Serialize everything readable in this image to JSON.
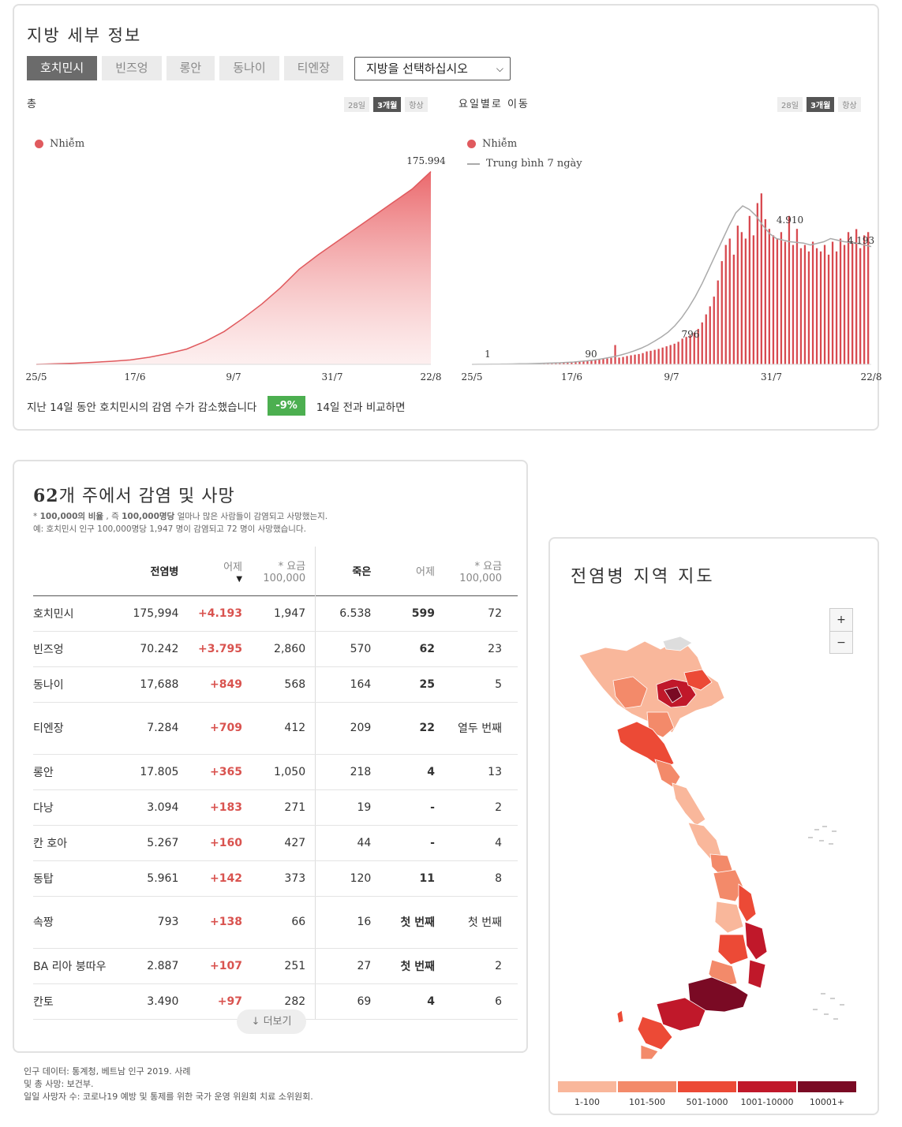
{
  "top": {
    "title": "지방 세부 정보",
    "tabs": [
      "호치민시",
      "빈즈엉",
      "롱안",
      "동나이",
      "티엔장"
    ],
    "select_label": "지방을 선택하십시오",
    "left_label": "총",
    "right_label": "요일별로 이동",
    "range_buttons": [
      "28일",
      "3개월",
      "항상"
    ],
    "legend_infected": "Nhiễm",
    "legend_avg": "Trung bình 7 ngày",
    "summary_text": "지난 14일 동안 호치민시의 감염 수가 감소했습니다",
    "summary_badge": "-9%",
    "summary_tail": "14일 전과 비교하면"
  },
  "chart_data": [
    {
      "type": "area",
      "title": "총",
      "series": [
        {
          "name": "Nhiễm",
          "values": [
            1,
            500,
            1000,
            1800,
            2800,
            4000,
            6500,
            9800,
            14000,
            21000,
            30000,
            42000,
            55000,
            70000,
            87000,
            100000,
            112000,
            124000,
            136000,
            148000,
            160000,
            175994
          ]
        }
      ],
      "x_ticks": [
        "25/5",
        "17/6",
        "9/7",
        "31/7",
        "22/8"
      ],
      "annotation": "175.994",
      "ylim": [
        0,
        180000
      ]
    },
    {
      "type": "bar",
      "title": "요일별로 이동",
      "series": [
        {
          "name": "Nhiễm",
          "values": [
            1,
            2,
            3,
            4,
            5,
            6,
            7,
            8,
            9,
            10,
            12,
            14,
            16,
            18,
            20,
            22,
            25,
            28,
            32,
            36,
            40,
            45,
            50,
            60,
            70,
            80,
            90,
            100,
            110,
            120,
            135,
            150,
            160,
            170,
            180,
            200,
            600,
            210,
            230,
            260,
            280,
            300,
            320,
            350,
            400,
            420,
            450,
            480,
            520,
            560,
            600,
            640,
            700,
            796,
            850,
            900,
            980,
            1100,
            1300,
            1550,
            1800,
            2100,
            2600,
            3200,
            3700,
            3900,
            3400,
            4300,
            4100,
            3900,
            4600,
            4000,
            5000,
            5300,
            4500,
            4200,
            4000,
            3900,
            4100,
            3800,
            4600,
            3700,
            4200,
            3600,
            3700,
            3500,
            3800,
            3600,
            3500,
            3700,
            3400,
            3800,
            3500,
            3900,
            3700,
            4100,
            3800,
            4193,
            3600,
            4000,
            4100
          ]
        },
        {
          "name": "Trung bình 7 ngày",
          "values": [
            1,
            2,
            3,
            5,
            7,
            10,
            13,
            16,
            20,
            25,
            30,
            36,
            42,
            50,
            60,
            72,
            90,
            110,
            135,
            165,
            200,
            240,
            290,
            350,
            420,
            500,
            600,
            720,
            850,
            1000,
            1200,
            1450,
            1750,
            2100,
            2500,
            2950,
            3400,
            3850,
            4300,
            4700,
            4910,
            4800,
            4600,
            4300,
            4050,
            3900,
            3850,
            3800,
            3780,
            3760,
            3700,
            3750,
            3800,
            3900,
            3850,
            3800,
            3780,
            3750,
            3700,
            3650
          ]
        }
      ],
      "x_ticks": [
        "25/5",
        "17/6",
        "9/7",
        "31/7",
        "22/8"
      ],
      "annotations": [
        "1",
        "90",
        "796",
        "4.910",
        "4.193"
      ]
    }
  ],
  "table": {
    "title_bold": "62",
    "title_rest": "개 주에서 감염 및 사망",
    "note1_prefix": "* ",
    "note1_b1": "100,000의 비율",
    "note1_mid": " , 즉 ",
    "note1_b2": "100,000명당",
    "note1_rest": " 얼마나 많은 사람들이 감염되고 사망했는지.",
    "note2": "예: 호치민시 인구 100,000명당 1,947 명이 감염되고 72 명이 사망했습니다.",
    "headers": {
      "cases": "전염병",
      "yesterday": "어제",
      "rate_top": "* 요금",
      "rate_bottom": "100,000",
      "deaths": "죽은",
      "d_yesterday": "어제",
      "d_rate_top": "* 요금",
      "d_rate_bottom": "100,000"
    },
    "rows": [
      {
        "name": "호치민시",
        "cases": "175,994",
        "yesterday": "+4.193",
        "rate": "1,947",
        "deaths": "6.538",
        "d_yesterday": "599",
        "d_rate": "72"
      },
      {
        "name": "빈즈엉",
        "cases": "70.242",
        "yesterday": "+3.795",
        "rate": "2,860",
        "deaths": "570",
        "d_yesterday": "62",
        "d_rate": "23"
      },
      {
        "name": "동나이",
        "cases": "17,688",
        "yesterday": "+849",
        "rate": "568",
        "deaths": "164",
        "d_yesterday": "25",
        "d_rate": "5"
      },
      {
        "name": "티엔장",
        "cases": "7.284",
        "yesterday": "+709",
        "rate": "412",
        "deaths": "209",
        "d_yesterday": "22",
        "d_rate": "열두 번째"
      },
      {
        "name": "롱안",
        "cases": "17.805",
        "yesterday": "+365",
        "rate": "1,050",
        "deaths": "218",
        "d_yesterday": "4",
        "d_rate": "13"
      },
      {
        "name": "다낭",
        "cases": "3.094",
        "yesterday": "+183",
        "rate": "271",
        "deaths": "19",
        "d_yesterday": "-",
        "d_rate": "2"
      },
      {
        "name": "칸 호아",
        "cases": "5.267",
        "yesterday": "+160",
        "rate": "427",
        "deaths": "44",
        "d_yesterday": "-",
        "d_rate": "4"
      },
      {
        "name": "동탑",
        "cases": "5.961",
        "yesterday": "+142",
        "rate": "373",
        "deaths": "120",
        "d_yesterday": "11",
        "d_rate": "8"
      },
      {
        "name": "속짱",
        "cases": "793",
        "yesterday": "+138",
        "rate": "66",
        "deaths": "16",
        "d_yesterday": "첫 번째",
        "d_rate": "첫 번째"
      },
      {
        "name": "BA 리아 붕따우",
        "cases": "2.887",
        "yesterday": "+107",
        "rate": "251",
        "deaths": "27",
        "d_yesterday": "첫 번째",
        "d_rate": "2"
      },
      {
        "name": "칸토",
        "cases": "3.490",
        "yesterday": "+97",
        "rate": "282",
        "deaths": "69",
        "d_yesterday": "4",
        "d_rate": "6"
      }
    ],
    "more_label": "더보기"
  },
  "map": {
    "title": "전염병 지역 지도",
    "zoom_in": "+",
    "zoom_out": "−",
    "legend": [
      {
        "label": "1-100",
        "color": "#f9b79b"
      },
      {
        "label": "101-500",
        "color": "#f38a6a"
      },
      {
        "label": "501-1000",
        "color": "#ec4a36"
      },
      {
        "label": "1001-10000",
        "color": "#c0182a"
      },
      {
        "label": "10001+",
        "color": "#7a0a24"
      }
    ]
  },
  "source": {
    "line1": "인구 데이터: 통계청, 베트남 인구 2019. 사례",
    "line2": "및 총 사망: 보건부.",
    "line3": "일일 사망자 수: 코로나19 예방 및 통제를 위한 국가 운영 위원회 치료 소위원회."
  }
}
